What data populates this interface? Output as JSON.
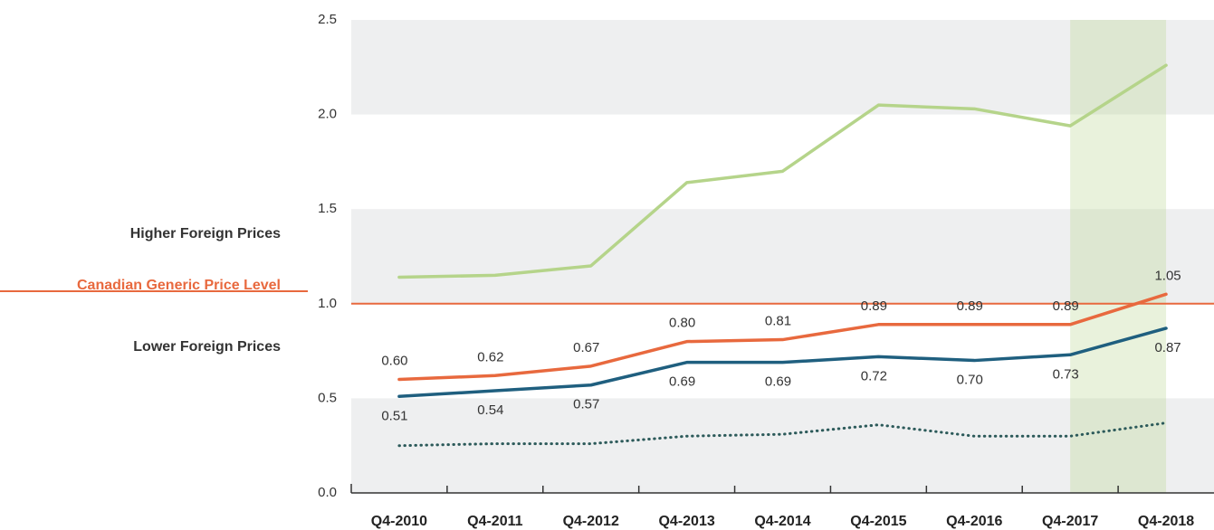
{
  "chart_data": {
    "type": "line",
    "categories": [
      "Q4-2010",
      "Q4-2011",
      "Q4-2012",
      "Q4-2013",
      "Q4-2014",
      "Q4-2015",
      "Q4-2016",
      "Q4-2017",
      "Q4-2018"
    ],
    "series": [
      {
        "color": "#b5d48a",
        "style": "solid",
        "values": [
          1.14,
          1.15,
          1.2,
          1.64,
          1.7,
          2.05,
          2.03,
          1.94,
          2.26
        ]
      },
      {
        "color": "#e8693e",
        "style": "solid",
        "values": [
          0.6,
          0.62,
          0.67,
          0.8,
          0.81,
          0.89,
          0.89,
          0.89,
          1.05
        ],
        "value_labels": [
          "0.60",
          "0.62",
          "0.67",
          "0.80",
          "0.81",
          "0.89",
          "0.89",
          "0.89",
          "1.05"
        ],
        "label_position": "above"
      },
      {
        "color": "#1f5f7f",
        "style": "solid",
        "values": [
          0.51,
          0.54,
          0.57,
          0.69,
          0.69,
          0.72,
          0.7,
          0.73,
          0.87
        ],
        "value_labels": [
          "0.51",
          "0.54",
          "0.57",
          "0.69",
          "0.69",
          "0.72",
          "0.70",
          "0.73",
          "0.87"
        ],
        "label_position": "below"
      },
      {
        "color": "#2c5a5a",
        "style": "dotted",
        "values": [
          0.25,
          0.26,
          0.26,
          0.3,
          0.31,
          0.36,
          0.3,
          0.3,
          0.37
        ]
      }
    ],
    "ylim": [
      0,
      2.5
    ],
    "yticks": [
      {
        "value": 0,
        "label": "0.0"
      },
      0.5,
      {
        "value": 1,
        "label": "1.0"
      },
      1.5,
      {
        "value": 2,
        "label": "2.0"
      },
      2.5
    ],
    "grid_band_color": "#eeeff0",
    "reference_line": {
      "value": 1,
      "label": "Canadian Generic Price Level",
      "color": "#e8693e"
    },
    "annotations": [
      "Higher Foreign Prices",
      "Lower Foreign Prices"
    ],
    "highlight_categories": [
      7,
      8
    ],
    "highlight_color": "#b5d48a"
  }
}
